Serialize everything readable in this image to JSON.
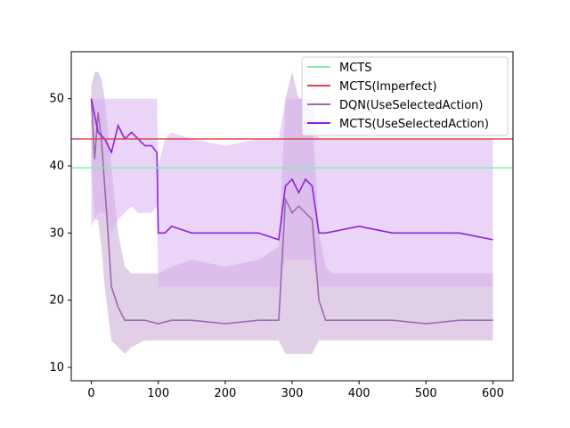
{
  "chart_data": {
    "type": "line",
    "title": "",
    "xlabel": "",
    "ylabel": "",
    "xlim": [
      -30,
      630
    ],
    "ylim": [
      8,
      57
    ],
    "xticks": [
      0,
      100,
      200,
      300,
      400,
      500,
      600
    ],
    "yticks": [
      10,
      20,
      30,
      40,
      50
    ],
    "grid": false,
    "legend_position": "top-right",
    "hlines": [
      {
        "name": "MCTS",
        "value": 39.7,
        "color": "#7ff0a8"
      },
      {
        "name": "MCTS(Imperfect)",
        "value": 44.0,
        "color": "#e0404c"
      }
    ],
    "series": [
      {
        "name": "DQN(UseSelectedAction)",
        "color": "#9b6aab",
        "band_color": "#c8a8d4",
        "x": [
          0,
          5,
          10,
          15,
          20,
          25,
          30,
          40,
          50,
          60,
          80,
          100,
          120,
          150,
          200,
          250,
          280,
          290,
          300,
          310,
          320,
          330,
          340,
          350,
          360,
          400,
          450,
          500,
          550,
          600
        ],
        "values": [
          50,
          41,
          48,
          44,
          37,
          30,
          22,
          19,
          17,
          17,
          17,
          16.5,
          17,
          17,
          16.5,
          17,
          17,
          35,
          33,
          34,
          33,
          32,
          20,
          17,
          17,
          17,
          17,
          16.5,
          17,
          17
        ],
        "band_low": [
          40,
          32,
          32,
          28,
          22,
          18,
          14,
          13,
          12,
          13,
          14,
          14,
          14,
          14,
          14,
          14,
          14,
          12,
          12,
          12,
          12,
          12,
          14,
          14,
          14,
          14,
          14,
          14,
          14,
          14
        ],
        "band_high": [
          52,
          54,
          54,
          53,
          50,
          45,
          40,
          30,
          25,
          24,
          24,
          24,
          25,
          26,
          25,
          26,
          28,
          50,
          54,
          50,
          50,
          48,
          30,
          25,
          24,
          24,
          24,
          24,
          24,
          24
        ]
      },
      {
        "name": "MCTS(UseSelectedAction)",
        "color": "#9020e0",
        "band_color": "#d8b0f0",
        "x": [
          0,
          10,
          20,
          30,
          40,
          50,
          60,
          70,
          80,
          90,
          98,
          100,
          110,
          120,
          150,
          200,
          250,
          280,
          290,
          300,
          310,
          320,
          330,
          340,
          350,
          400,
          450,
          500,
          550,
          600
        ],
        "values": [
          50,
          45,
          44,
          42,
          46,
          44,
          45,
          44,
          43,
          43,
          42,
          30,
          30,
          31,
          30,
          30,
          30,
          29,
          37,
          38,
          36,
          38,
          37,
          30,
          30,
          31,
          30,
          30,
          30,
          29
        ],
        "band_low": [
          31,
          33,
          33,
          30,
          32,
          33,
          34,
          33,
          33,
          33,
          34,
          22,
          22,
          22,
          22,
          22,
          22,
          22,
          26,
          26,
          26,
          26,
          26,
          22,
          22,
          22,
          22,
          22,
          22,
          22
        ],
        "band_high": [
          50,
          50,
          50,
          50,
          50,
          50,
          50,
          50,
          50,
          50,
          50,
          40,
          44,
          45,
          44,
          43,
          44,
          44,
          50,
          50,
          50,
          50,
          50,
          44,
          44,
          44,
          44,
          44,
          44,
          44
        ]
      }
    ],
    "legend": [
      "MCTS",
      "MCTS(Imperfect)",
      "DQN(UseSelectedAction)",
      "MCTS(UseSelectedAction)"
    ]
  }
}
